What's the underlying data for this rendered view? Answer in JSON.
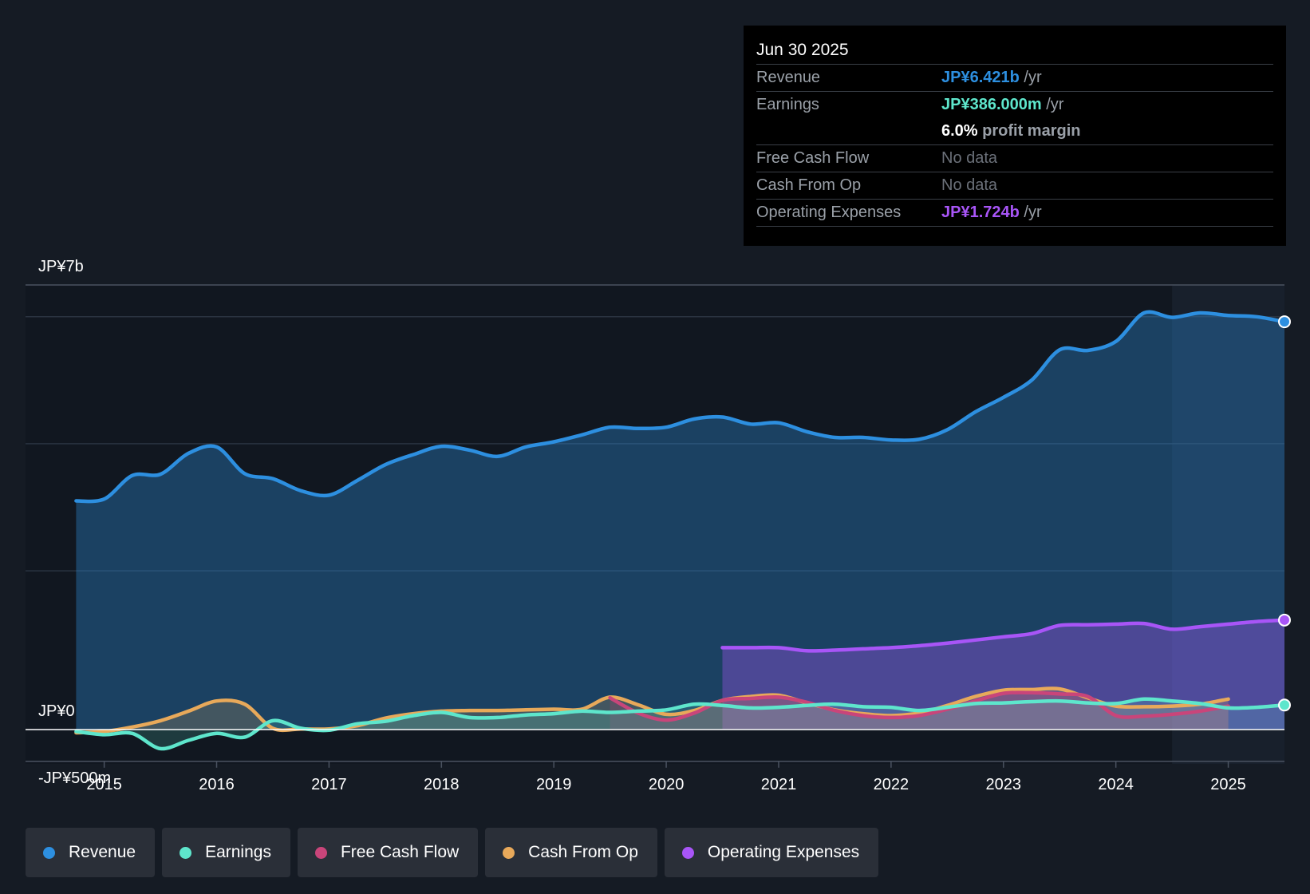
{
  "tooltip": {
    "date": "Jun 30 2025",
    "rows": {
      "revenue": {
        "label": "Revenue",
        "value": "JP¥6.421b",
        "unit": "/yr"
      },
      "earnings": {
        "label": "Earnings",
        "value": "JP¥386.000m",
        "unit": "/yr"
      },
      "margin": {
        "value": "6.0%",
        "unit": "profit margin"
      },
      "fcf": {
        "label": "Free Cash Flow",
        "value": "No data"
      },
      "cfo": {
        "label": "Cash From Op",
        "value": "No data"
      },
      "opex": {
        "label": "Operating Expenses",
        "value": "JP¥1.724b",
        "unit": "/yr"
      }
    }
  },
  "legend": [
    {
      "label": "Revenue",
      "color": "#2d8fe0"
    },
    {
      "label": "Earnings",
      "color": "#5ee6cc"
    },
    {
      "label": "Free Cash Flow",
      "color": "#c9457a"
    },
    {
      "label": "Cash From Op",
      "color": "#e8a95a"
    },
    {
      "label": "Operating Expenses",
      "color": "#a855f7"
    }
  ],
  "chart_data": {
    "type": "area",
    "title": "",
    "ylim": [
      -500,
      7000
    ],
    "y_labels": [
      {
        "label": "JP¥7b",
        "value": 7000
      },
      {
        "label": "JP¥0",
        "value": 0
      },
      {
        "label": "-JP¥500m",
        "value": -500
      }
    ],
    "x_ticks": [
      "2015",
      "2016",
      "2017",
      "2018",
      "2019",
      "2020",
      "2021",
      "2022",
      "2023",
      "2024",
      "2025"
    ],
    "x_tick_values": [
      2015,
      2016,
      2017,
      2018,
      2019,
      2020,
      2021,
      2022,
      2023,
      2024,
      2025
    ],
    "xlim": [
      2014.3,
      2025.5
    ],
    "forecast_start": 2024.5,
    "series": [
      {
        "name": "Revenue",
        "color": "#2d8fe0",
        "x": [
          2014.75,
          2015.0,
          2015.25,
          2015.5,
          2015.75,
          2016.0,
          2016.25,
          2016.5,
          2016.75,
          2017.0,
          2017.25,
          2017.5,
          2017.75,
          2018.0,
          2018.25,
          2018.5,
          2018.75,
          2019.0,
          2019.25,
          2019.5,
          2019.75,
          2020.0,
          2020.25,
          2020.5,
          2020.75,
          2021.0,
          2021.25,
          2021.5,
          2021.75,
          2022.0,
          2022.25,
          2022.5,
          2022.75,
          2023.0,
          2023.25,
          2023.5,
          2023.75,
          2024.0,
          2024.25,
          2024.5,
          2024.75,
          2025.0,
          2025.25,
          2025.5
        ],
        "values": [
          3600,
          3630,
          4000,
          4020,
          4350,
          4450,
          4030,
          3950,
          3760,
          3690,
          3920,
          4170,
          4330,
          4460,
          4400,
          4300,
          4450,
          4530,
          4640,
          4760,
          4740,
          4760,
          4890,
          4920,
          4810,
          4830,
          4690,
          4600,
          4600,
          4560,
          4570,
          4720,
          5000,
          5230,
          5500,
          5980,
          5970,
          6110,
          6560,
          6490,
          6560,
          6520,
          6500,
          6421
        ]
      },
      {
        "name": "Earnings",
        "color": "#5ee6cc",
        "x": [
          2014.75,
          2015.0,
          2015.25,
          2015.5,
          2015.75,
          2016.0,
          2016.25,
          2016.5,
          2016.75,
          2017.0,
          2017.25,
          2017.5,
          2017.75,
          2018.0,
          2018.25,
          2018.5,
          2018.75,
          2019.0,
          2019.25,
          2019.5,
          2019.75,
          2020.0,
          2020.25,
          2020.5,
          2020.75,
          2021.0,
          2021.25,
          2021.5,
          2021.75,
          2022.0,
          2022.25,
          2022.5,
          2022.75,
          2023.0,
          2023.25,
          2023.5,
          2023.75,
          2024.0,
          2024.25,
          2024.5,
          2024.75,
          2025.0,
          2025.25,
          2025.5
        ],
        "values": [
          -30,
          -80,
          -60,
          -300,
          -170,
          -60,
          -120,
          140,
          20,
          -10,
          90,
          130,
          220,
          270,
          190,
          190,
          230,
          250,
          290,
          270,
          290,
          310,
          400,
          380,
          340,
          350,
          380,
          400,
          360,
          350,
          300,
          350,
          410,
          420,
          440,
          450,
          420,
          410,
          480,
          450,
          410,
          340,
          350,
          386
        ]
      },
      {
        "name": "Free Cash Flow",
        "color": "#c9457a",
        "x": [
          2019.5,
          2019.75,
          2020.0,
          2020.25,
          2020.5,
          2020.75,
          2021.0,
          2021.25,
          2021.5,
          2021.75,
          2022.0,
          2022.25,
          2022.5,
          2022.75,
          2023.0,
          2023.25,
          2023.5,
          2023.75,
          2024.0,
          2024.25,
          2024.5,
          2024.75,
          2025.0
        ],
        "values": [
          500,
          260,
          150,
          260,
          460,
          490,
          510,
          430,
          300,
          220,
          190,
          220,
          320,
          450,
          570,
          580,
          560,
          520,
          220,
          210,
          240,
          290,
          370
        ]
      },
      {
        "name": "Cash From Op",
        "color": "#e8a95a",
        "x": [
          2014.75,
          2015.0,
          2015.25,
          2015.5,
          2015.75,
          2016.0,
          2016.25,
          2016.5,
          2016.75,
          2017.0,
          2017.25,
          2017.5,
          2017.75,
          2018.0,
          2018.25,
          2018.5,
          2018.75,
          2019.0,
          2019.25,
          2019.5,
          2019.75,
          2020.0,
          2020.25,
          2020.5,
          2020.75,
          2021.0,
          2021.25,
          2021.5,
          2021.75,
          2022.0,
          2022.25,
          2022.5,
          2022.75,
          2023.0,
          2023.25,
          2023.5,
          2023.75,
          2024.0,
          2024.25,
          2024.5,
          2024.75,
          2025.0
        ],
        "values": [
          -50,
          -30,
          40,
          140,
          290,
          450,
          400,
          20,
          10,
          10,
          60,
          180,
          250,
          290,
          300,
          300,
          310,
          320,
          320,
          510,
          390,
          240,
          300,
          460,
          520,
          540,
          420,
          310,
          250,
          220,
          260,
          380,
          520,
          620,
          630,
          640,
          500,
          370,
          360,
          370,
          400,
          480
        ]
      },
      {
        "name": "Operating Expenses",
        "color": "#a855f7",
        "x": [
          2020.5,
          2020.75,
          2021.0,
          2021.25,
          2021.5,
          2021.75,
          2022.0,
          2022.25,
          2022.5,
          2022.75,
          2023.0,
          2023.25,
          2023.5,
          2023.75,
          2024.0,
          2024.25,
          2024.5,
          2024.75,
          2025.0,
          2025.25,
          2025.5
        ],
        "values": [
          1290,
          1290,
          1290,
          1240,
          1250,
          1270,
          1290,
          1320,
          1360,
          1410,
          1460,
          1510,
          1640,
          1650,
          1660,
          1670,
          1580,
          1620,
          1660,
          1700,
          1724
        ]
      }
    ]
  }
}
